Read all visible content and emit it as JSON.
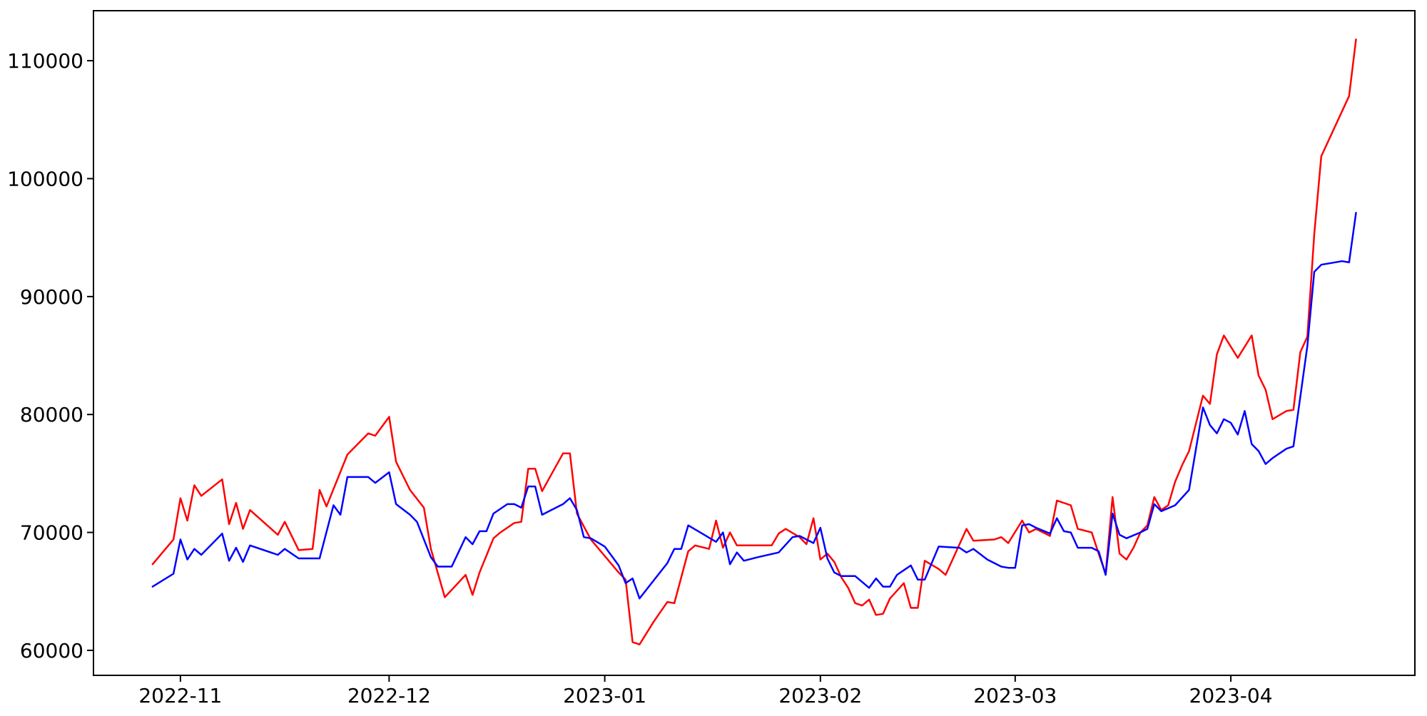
{
  "chart_data": {
    "type": "line",
    "title": "",
    "xlabel": "",
    "ylabel": "",
    "grid": false,
    "legend_position": "none",
    "background_color": "#ffffff",
    "axis_color": "#000000",
    "y_ticks": [
      60000,
      70000,
      80000,
      90000,
      100000,
      110000
    ],
    "y_tick_labels": [
      "60000",
      "70000",
      "80000",
      "90000",
      "100000",
      "110000"
    ],
    "ylim": [
      57880,
      114240
    ],
    "x_ticks": [
      {
        "label": "2022-11",
        "date": "2022-11-01"
      },
      {
        "label": "2022-12",
        "date": "2022-12-01"
      },
      {
        "label": "2023-01",
        "date": "2023-01-01"
      },
      {
        "label": "2023-02",
        "date": "2023-02-01"
      },
      {
        "label": "2023-03",
        "date": "2023-03-01"
      },
      {
        "label": "2023-04",
        "date": "2023-04-01"
      }
    ],
    "x_domain": [
      "2022-10-19T12:00:00Z",
      "2023-04-27T11:00:00Z"
    ],
    "series": [
      {
        "name": "red-series",
        "color": "#ff0000",
        "points": [
          [
            "2022-10-28",
            67300
          ],
          [
            "2022-10-31",
            69400
          ],
          [
            "2022-11-01",
            72900
          ],
          [
            "2022-11-02",
            71000
          ],
          [
            "2022-11-03",
            74000
          ],
          [
            "2022-11-04",
            73100
          ],
          [
            "2022-11-07",
            74500
          ],
          [
            "2022-11-08",
            70700
          ],
          [
            "2022-11-09",
            72500
          ],
          [
            "2022-11-10",
            70300
          ],
          [
            "2022-11-11",
            71900
          ],
          [
            "2022-11-15",
            69800
          ],
          [
            "2022-11-16",
            70900
          ],
          [
            "2022-11-18",
            68500
          ],
          [
            "2022-11-20",
            68600
          ],
          [
            "2022-11-21",
            73600
          ],
          [
            "2022-11-22",
            72200
          ],
          [
            "2022-11-25",
            76600
          ],
          [
            "2022-11-28",
            78400
          ],
          [
            "2022-11-29",
            78200
          ],
          [
            "2022-12-01",
            79800
          ],
          [
            "2022-12-02",
            76000
          ],
          [
            "2022-12-04",
            73600
          ],
          [
            "2022-12-06",
            72100
          ],
          [
            "2022-12-07",
            68600
          ],
          [
            "2022-12-09",
            64500
          ],
          [
            "2022-12-12",
            66400
          ],
          [
            "2022-12-13",
            64700
          ],
          [
            "2022-12-14",
            66600
          ],
          [
            "2022-12-16",
            69500
          ],
          [
            "2022-12-17",
            70000
          ],
          [
            "2022-12-19",
            70800
          ],
          [
            "2022-12-20",
            70900
          ],
          [
            "2022-12-21",
            75400
          ],
          [
            "2022-12-22",
            75400
          ],
          [
            "2022-12-23",
            73500
          ],
          [
            "2022-12-26",
            76700
          ],
          [
            "2022-12-27",
            76700
          ],
          [
            "2022-12-28",
            71600
          ],
          [
            "2022-12-30",
            69400
          ],
          [
            "2023-01-01",
            68000
          ],
          [
            "2023-01-03",
            66600
          ],
          [
            "2023-01-04",
            66000
          ],
          [
            "2023-01-05",
            60700
          ],
          [
            "2023-01-06",
            60500
          ],
          [
            "2023-01-08",
            62400
          ],
          [
            "2023-01-10",
            64100
          ],
          [
            "2023-01-11",
            64000
          ],
          [
            "2023-01-13",
            68400
          ],
          [
            "2023-01-14",
            68900
          ],
          [
            "2023-01-16",
            68600
          ],
          [
            "2023-01-17",
            71000
          ],
          [
            "2023-01-18",
            68700
          ],
          [
            "2023-01-19",
            70000
          ],
          [
            "2023-01-20",
            68900
          ],
          [
            "2023-01-25",
            68900
          ],
          [
            "2023-01-26",
            69900
          ],
          [
            "2023-01-27",
            70300
          ],
          [
            "2023-01-29",
            69600
          ],
          [
            "2023-01-30",
            69000
          ],
          [
            "2023-01-31",
            71200
          ],
          [
            "2023-02-01",
            67700
          ],
          [
            "2023-02-02",
            68200
          ],
          [
            "2023-02-03",
            67500
          ],
          [
            "2023-02-04",
            66200
          ],
          [
            "2023-02-05",
            65300
          ],
          [
            "2023-02-06",
            64000
          ],
          [
            "2023-02-07",
            63800
          ],
          [
            "2023-02-08",
            64300
          ],
          [
            "2023-02-09",
            63000
          ],
          [
            "2023-02-10",
            63100
          ],
          [
            "2023-02-11",
            64400
          ],
          [
            "2023-02-13",
            65700
          ],
          [
            "2023-02-14",
            63600
          ],
          [
            "2023-02-15",
            63600
          ],
          [
            "2023-02-16",
            67600
          ],
          [
            "2023-02-18",
            66900
          ],
          [
            "2023-02-19",
            66400
          ],
          [
            "2023-02-22",
            70300
          ],
          [
            "2023-02-23",
            69300
          ],
          [
            "2023-02-26",
            69400
          ],
          [
            "2023-02-27",
            69600
          ],
          [
            "2023-02-28",
            69100
          ],
          [
            "2023-03-02",
            71000
          ],
          [
            "2023-03-03",
            70000
          ],
          [
            "2023-03-04",
            70300
          ],
          [
            "2023-03-06",
            69700
          ],
          [
            "2023-03-07",
            72700
          ],
          [
            "2023-03-09",
            72300
          ],
          [
            "2023-03-10",
            70300
          ],
          [
            "2023-03-12",
            70000
          ],
          [
            "2023-03-13",
            68200
          ],
          [
            "2023-03-14",
            66500
          ],
          [
            "2023-03-15",
            73000
          ],
          [
            "2023-03-16",
            68200
          ],
          [
            "2023-03-17",
            67700
          ],
          [
            "2023-03-18",
            68700
          ],
          [
            "2023-03-19",
            70000
          ],
          [
            "2023-03-20",
            70600
          ],
          [
            "2023-03-21",
            73000
          ],
          [
            "2023-03-22",
            71900
          ],
          [
            "2023-03-23",
            72300
          ],
          [
            "2023-03-24",
            74300
          ],
          [
            "2023-03-25",
            75700
          ],
          [
            "2023-03-26",
            76900
          ],
          [
            "2023-03-28",
            81600
          ],
          [
            "2023-03-29",
            80900
          ],
          [
            "2023-03-30",
            85100
          ],
          [
            "2023-03-31",
            86700
          ],
          [
            "2023-04-02",
            84800
          ],
          [
            "2023-04-04",
            86700
          ],
          [
            "2023-04-05",
            83300
          ],
          [
            "2023-04-06",
            82100
          ],
          [
            "2023-04-07",
            79600
          ],
          [
            "2023-04-09",
            80300
          ],
          [
            "2023-04-10",
            80400
          ],
          [
            "2023-04-11",
            85300
          ],
          [
            "2023-04-12",
            86600
          ],
          [
            "2023-04-13",
            95300
          ],
          [
            "2023-04-14",
            101900
          ],
          [
            "2023-04-18",
            107000
          ],
          [
            "2023-04-19",
            111800
          ]
        ]
      },
      {
        "name": "blue-series",
        "color": "#0000ff",
        "points": [
          [
            "2022-10-28",
            65400
          ],
          [
            "2022-10-31",
            66500
          ],
          [
            "2022-11-01",
            69400
          ],
          [
            "2022-11-02",
            67700
          ],
          [
            "2022-11-03",
            68600
          ],
          [
            "2022-11-04",
            68100
          ],
          [
            "2022-11-07",
            69900
          ],
          [
            "2022-11-08",
            67600
          ],
          [
            "2022-11-09",
            68700
          ],
          [
            "2022-11-10",
            67500
          ],
          [
            "2022-11-11",
            68900
          ],
          [
            "2022-11-15",
            68100
          ],
          [
            "2022-11-16",
            68600
          ],
          [
            "2022-11-18",
            67800
          ],
          [
            "2022-11-21",
            67800
          ],
          [
            "2022-11-23",
            72300
          ],
          [
            "2022-11-24",
            71500
          ],
          [
            "2022-11-25",
            74700
          ],
          [
            "2022-11-28",
            74700
          ],
          [
            "2022-11-29",
            74200
          ],
          [
            "2022-12-01",
            75100
          ],
          [
            "2022-12-02",
            72400
          ],
          [
            "2022-12-04",
            71500
          ],
          [
            "2022-12-05",
            70900
          ],
          [
            "2022-12-07",
            67900
          ],
          [
            "2022-12-08",
            67100
          ],
          [
            "2022-12-10",
            67100
          ],
          [
            "2022-12-12",
            69600
          ],
          [
            "2022-12-13",
            69000
          ],
          [
            "2022-12-14",
            70100
          ],
          [
            "2022-12-15",
            70100
          ],
          [
            "2022-12-16",
            71600
          ],
          [
            "2022-12-18",
            72400
          ],
          [
            "2022-12-19",
            72400
          ],
          [
            "2022-12-20",
            72100
          ],
          [
            "2022-12-21",
            73900
          ],
          [
            "2022-12-22",
            73900
          ],
          [
            "2022-12-23",
            71500
          ],
          [
            "2022-12-24",
            71800
          ],
          [
            "2022-12-26",
            72400
          ],
          [
            "2022-12-27",
            72900
          ],
          [
            "2022-12-28",
            71900
          ],
          [
            "2022-12-29",
            69600
          ],
          [
            "2022-12-30",
            69500
          ],
          [
            "2023-01-01",
            68800
          ],
          [
            "2023-01-03",
            67200
          ],
          [
            "2023-01-04",
            65700
          ],
          [
            "2023-01-05",
            66100
          ],
          [
            "2023-01-06",
            64400
          ],
          [
            "2023-01-08",
            65900
          ],
          [
            "2023-01-10",
            67400
          ],
          [
            "2023-01-11",
            68600
          ],
          [
            "2023-01-12",
            68600
          ],
          [
            "2023-01-13",
            70600
          ],
          [
            "2023-01-15",
            69900
          ],
          [
            "2023-01-17",
            69200
          ],
          [
            "2023-01-18",
            70000
          ],
          [
            "2023-01-19",
            67300
          ],
          [
            "2023-01-20",
            68300
          ],
          [
            "2023-01-21",
            67600
          ],
          [
            "2023-01-23",
            67900
          ],
          [
            "2023-01-26",
            68300
          ],
          [
            "2023-01-28",
            69600
          ],
          [
            "2023-01-29",
            69700
          ],
          [
            "2023-01-31",
            69100
          ],
          [
            "2023-02-01",
            70400
          ],
          [
            "2023-02-02",
            67800
          ],
          [
            "2023-02-03",
            66600
          ],
          [
            "2023-02-04",
            66300
          ],
          [
            "2023-02-06",
            66300
          ],
          [
            "2023-02-08",
            65300
          ],
          [
            "2023-02-09",
            66100
          ],
          [
            "2023-02-10",
            65400
          ],
          [
            "2023-02-11",
            65400
          ],
          [
            "2023-02-12",
            66400
          ],
          [
            "2023-02-14",
            67200
          ],
          [
            "2023-02-15",
            66000
          ],
          [
            "2023-02-16",
            66000
          ],
          [
            "2023-02-18",
            68800
          ],
          [
            "2023-02-21",
            68700
          ],
          [
            "2023-02-22",
            68300
          ],
          [
            "2023-02-23",
            68600
          ],
          [
            "2023-02-25",
            67700
          ],
          [
            "2023-02-27",
            67100
          ],
          [
            "2023-02-28",
            67000
          ],
          [
            "2023-03-01",
            67000
          ],
          [
            "2023-03-02",
            70600
          ],
          [
            "2023-03-03",
            70700
          ],
          [
            "2023-03-04",
            70400
          ],
          [
            "2023-03-06",
            69900
          ],
          [
            "2023-03-07",
            71200
          ],
          [
            "2023-03-08",
            70100
          ],
          [
            "2023-03-09",
            70000
          ],
          [
            "2023-03-10",
            68700
          ],
          [
            "2023-03-12",
            68700
          ],
          [
            "2023-03-13",
            68400
          ],
          [
            "2023-03-14",
            66400
          ],
          [
            "2023-03-15",
            71600
          ],
          [
            "2023-03-16",
            69800
          ],
          [
            "2023-03-17",
            69500
          ],
          [
            "2023-03-19",
            70000
          ],
          [
            "2023-03-20",
            70300
          ],
          [
            "2023-03-21",
            72400
          ],
          [
            "2023-03-22",
            71800
          ],
          [
            "2023-03-24",
            72300
          ],
          [
            "2023-03-26",
            73600
          ],
          [
            "2023-03-28",
            80600
          ],
          [
            "2023-03-29",
            79100
          ],
          [
            "2023-03-30",
            78400
          ],
          [
            "2023-03-31",
            79600
          ],
          [
            "2023-04-01",
            79300
          ],
          [
            "2023-04-02",
            78300
          ],
          [
            "2023-04-03",
            80300
          ],
          [
            "2023-04-04",
            77500
          ],
          [
            "2023-04-05",
            76900
          ],
          [
            "2023-04-06",
            75800
          ],
          [
            "2023-04-07",
            76300
          ],
          [
            "2023-04-09",
            77100
          ],
          [
            "2023-04-10",
            77300
          ],
          [
            "2023-04-12",
            85800
          ],
          [
            "2023-04-13",
            92100
          ],
          [
            "2023-04-14",
            92700
          ],
          [
            "2023-04-17",
            93000
          ],
          [
            "2023-04-18",
            92900
          ],
          [
            "2023-04-19",
            97100
          ]
        ]
      }
    ]
  }
}
